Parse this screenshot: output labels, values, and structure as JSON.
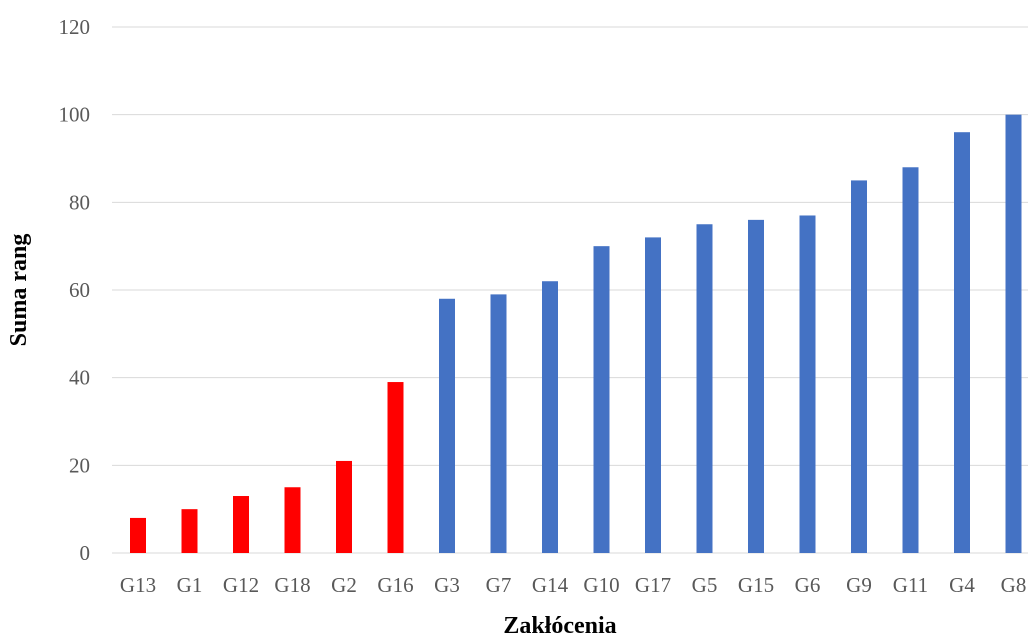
{
  "chart_data": {
    "type": "bar",
    "categories": [
      "G13",
      "G1",
      "G12",
      "G18",
      "G2",
      "G16",
      "G3",
      "G7",
      "G14",
      "G10",
      "G17",
      "G5",
      "G15",
      "G6",
      "G9",
      "G11",
      "G4",
      "G8"
    ],
    "values": [
      8,
      10,
      13,
      15,
      21,
      39,
      58,
      59,
      62,
      70,
      72,
      75,
      76,
      77,
      85,
      88,
      96,
      100
    ],
    "bar_colors": [
      "#ff0000",
      "#ff0000",
      "#ff0000",
      "#ff0000",
      "#ff0000",
      "#ff0000",
      "#4472c4",
      "#4472c4",
      "#4472c4",
      "#4472c4",
      "#4472c4",
      "#4472c4",
      "#4472c4",
      "#4472c4",
      "#4472c4",
      "#4472c4",
      "#4472c4",
      "#4472c4"
    ],
    "xlabel": "Zakłócenia",
    "ylabel": "Suma rang",
    "ylim": [
      0,
      120
    ],
    "yticks": [
      0,
      20,
      40,
      60,
      80,
      100,
      120
    ],
    "grid": true,
    "legend": "none"
  }
}
